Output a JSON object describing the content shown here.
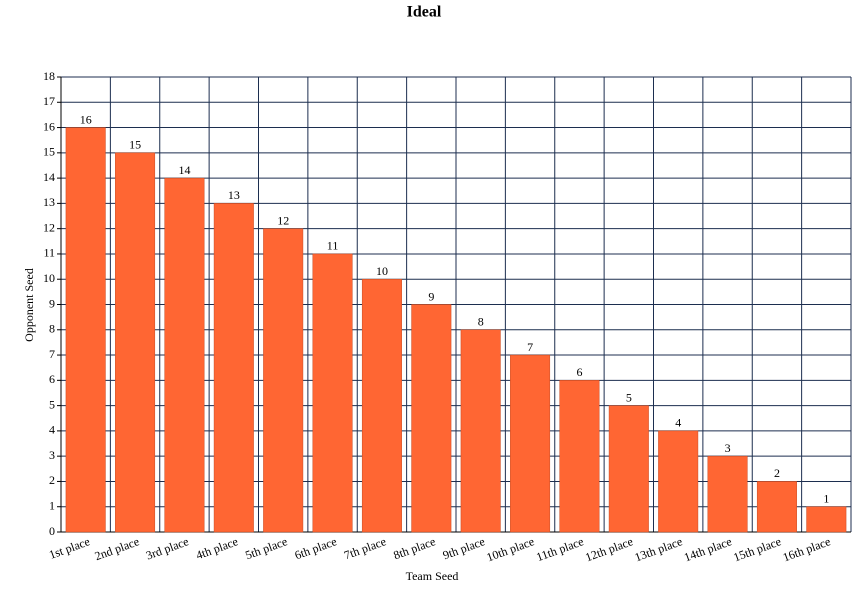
{
  "chart_data": {
    "type": "bar",
    "title": "Ideal",
    "x_label": "Team Seed",
    "y_label": "Opponent Seed",
    "categories": [
      "1st place",
      "2nd place",
      "3rd place",
      "4th place",
      "5th place",
      "6th place",
      "7th place",
      "8th place",
      "9th place",
      "10th place",
      "11th place",
      "12th place",
      "13th place",
      "14th place",
      "15th place",
      "16th place"
    ],
    "values": [
      16,
      15,
      14,
      13,
      12,
      11,
      10,
      9,
      8,
      7,
      6,
      5,
      4,
      3,
      2,
      1
    ],
    "color": "#ff6633",
    "ylim": [
      0,
      18
    ],
    "yticks": [
      0,
      1,
      2,
      3,
      4,
      5,
      6,
      7,
      8,
      9,
      10,
      11,
      12,
      13,
      14,
      15,
      16,
      17,
      18
    ],
    "grid": true,
    "show_value_labels": true
  }
}
